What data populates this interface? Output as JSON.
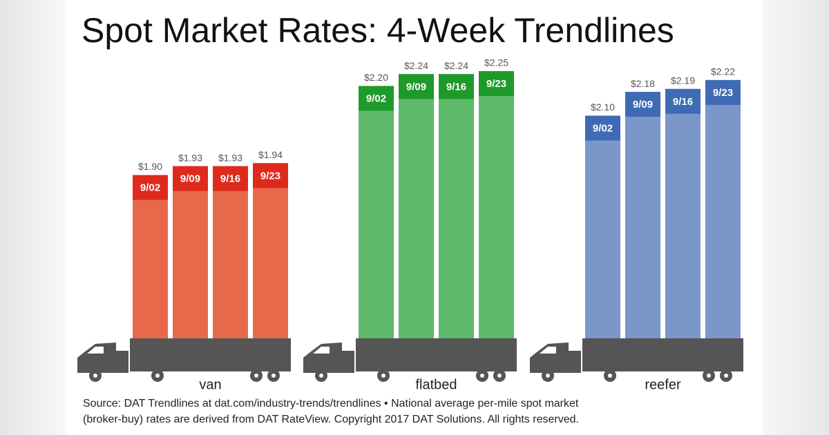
{
  "chart_data": {
    "type": "bar",
    "title": "Spot Market Rates: 4-Week Trendlines",
    "ylim": [
      1.35,
      2.35
    ],
    "groups": [
      {
        "name": "van",
        "color": "#e8694a",
        "cap_color": "#de2a1c",
        "categories": [
          "9/02",
          "9/09",
          "9/16",
          "9/23"
        ],
        "values": [
          1.9,
          1.93,
          1.93,
          1.94
        ],
        "value_labels": [
          "$1.90",
          "$1.93",
          "$1.93",
          "$1.94"
        ]
      },
      {
        "name": "flatbed",
        "color": "#5cba6a",
        "cap_color": "#1e9a2b",
        "categories": [
          "9/02",
          "9/09",
          "9/16",
          "9/23"
        ],
        "values": [
          2.2,
          2.24,
          2.24,
          2.25
        ],
        "value_labels": [
          "$2.20",
          "$2.24",
          "$2.24",
          "$2.25"
        ]
      },
      {
        "name": "reefer",
        "color": "#7b97c9",
        "cap_color": "#3e6bb4",
        "categories": [
          "9/02",
          "9/09",
          "9/16",
          "9/23"
        ],
        "values": [
          2.1,
          2.18,
          2.19,
          2.22
        ],
        "value_labels": [
          "$2.10",
          "$2.18",
          "$2.19",
          "$2.22"
        ]
      }
    ],
    "source": [
      "Source: DAT Trendlines at dat.com/industry-trends/trendlines • National average per-mile spot market",
      "(broker-buy) rates are derived from DAT RateView. Copyright 2017 DAT Solutions. All rights reserved."
    ]
  }
}
